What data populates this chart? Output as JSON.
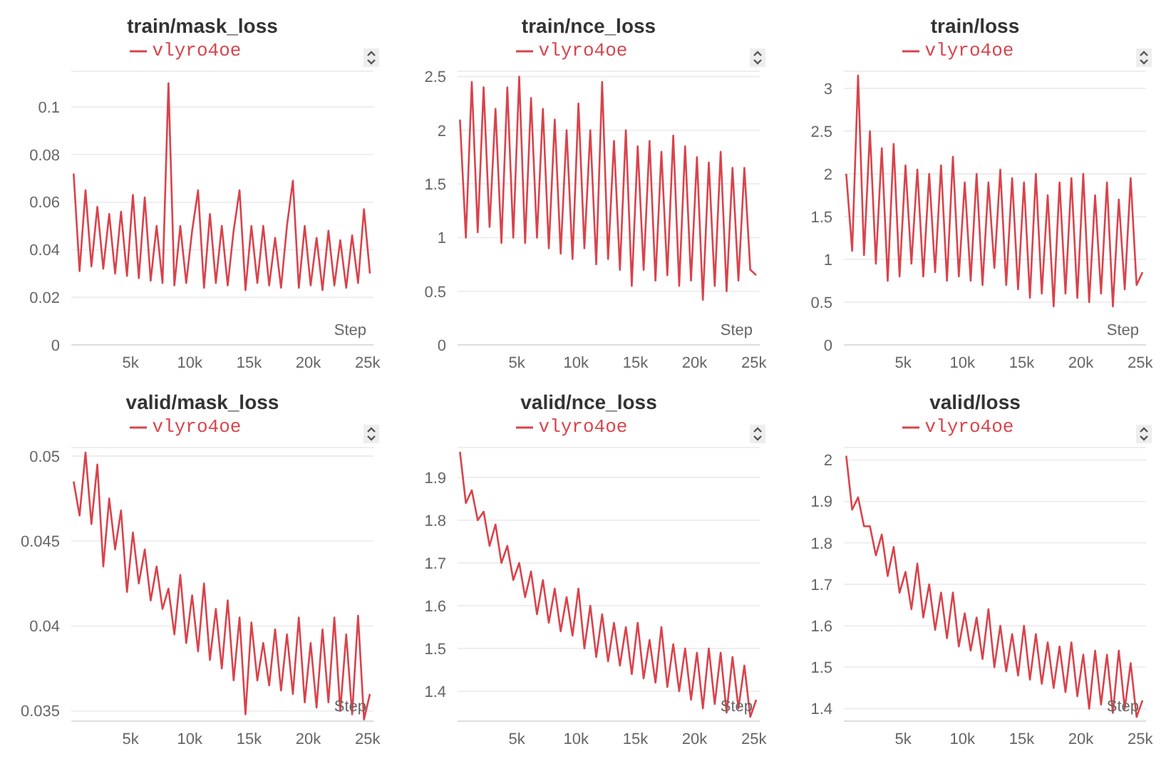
{
  "chart_data": [
    {
      "type": "line",
      "title": "train/mask_loss",
      "xlabel": "Step",
      "grid": "y",
      "legend": "top",
      "xlim": [
        0,
        25500
      ],
      "ylim": [
        0,
        0.115
      ],
      "yticks": [
        0,
        0.02,
        0.04,
        0.06,
        0.08,
        0.1
      ],
      "xticks": [
        {
          "value": 5000,
          "label": "5k"
        },
        {
          "value": 10000,
          "label": "10k"
        },
        {
          "value": 15000,
          "label": "15k"
        },
        {
          "value": 20000,
          "label": "20k"
        },
        {
          "value": 25000,
          "label": "25k"
        }
      ],
      "x": [
        200,
        700,
        1200,
        1700,
        2200,
        2700,
        3200,
        3700,
        4200,
        4700,
        5200,
        5700,
        6200,
        6700,
        7200,
        7700,
        8200,
        8700,
        9200,
        9700,
        10200,
        10700,
        11200,
        11700,
        12200,
        12700,
        13200,
        13700,
        14200,
        14700,
        15200,
        15700,
        16200,
        16700,
        17200,
        17700,
        18200,
        18700,
        19200,
        19700,
        20200,
        20700,
        21200,
        21700,
        22200,
        22700,
        23200,
        23700,
        24200,
        24700,
        25200
      ],
      "series": [
        {
          "name": "vlyro4oe",
          "color": "#d9434b",
          "values": [
            0.072,
            0.031,
            0.065,
            0.033,
            0.058,
            0.032,
            0.055,
            0.03,
            0.056,
            0.029,
            0.063,
            0.028,
            0.062,
            0.027,
            0.05,
            0.026,
            0.11,
            0.025,
            0.05,
            0.026,
            0.048,
            0.065,
            0.024,
            0.055,
            0.026,
            0.05,
            0.025,
            0.048,
            0.065,
            0.023,
            0.05,
            0.026,
            0.05,
            0.025,
            0.045,
            0.024,
            0.05,
            0.069,
            0.024,
            0.05,
            0.025,
            0.045,
            0.023,
            0.048,
            0.025,
            0.044,
            0.024,
            0.046,
            0.026,
            0.057,
            0.03
          ]
        }
      ]
    },
    {
      "type": "line",
      "title": "train/nce_loss",
      "xlabel": "Step",
      "grid": "y",
      "legend": "top",
      "xlim": [
        0,
        25500
      ],
      "ylim": [
        0,
        2.55
      ],
      "yticks": [
        0,
        0.5,
        1,
        1.5,
        2,
        2.5
      ],
      "xticks": [
        {
          "value": 5000,
          "label": "5k"
        },
        {
          "value": 10000,
          "label": "10k"
        },
        {
          "value": 15000,
          "label": "15k"
        },
        {
          "value": 20000,
          "label": "20k"
        },
        {
          "value": 25000,
          "label": "25k"
        }
      ],
      "x": [
        200,
        700,
        1200,
        1700,
        2200,
        2700,
        3200,
        3700,
        4200,
        4700,
        5200,
        5700,
        6200,
        6700,
        7200,
        7700,
        8200,
        8700,
        9200,
        9700,
        10200,
        10700,
        11200,
        11700,
        12200,
        12700,
        13200,
        13700,
        14200,
        14700,
        15200,
        15700,
        16200,
        16700,
        17200,
        17700,
        18200,
        18700,
        19200,
        19700,
        20200,
        20700,
        21200,
        21700,
        22200,
        22700,
        23200,
        23700,
        24200,
        24700,
        25200
      ],
      "series": [
        {
          "name": "vlyro4oe",
          "color": "#d9434b",
          "values": [
            2.1,
            1.0,
            2.45,
            1.05,
            2.4,
            1.1,
            2.2,
            0.95,
            2.4,
            1.0,
            2.5,
            0.95,
            2.3,
            1.0,
            2.2,
            0.9,
            2.1,
            0.85,
            2.0,
            0.8,
            2.25,
            0.9,
            2.0,
            0.75,
            2.45,
            0.8,
            1.9,
            0.7,
            2.0,
            0.55,
            1.85,
            0.7,
            1.9,
            0.6,
            1.8,
            0.65,
            1.95,
            0.55,
            1.85,
            0.6,
            1.75,
            0.42,
            1.7,
            0.55,
            1.8,
            0.5,
            1.65,
            0.6,
            1.65,
            0.7,
            0.65
          ]
        }
      ]
    },
    {
      "type": "line",
      "title": "train/loss",
      "xlabel": "Step",
      "grid": "y",
      "legend": "top",
      "xlim": [
        0,
        25500
      ],
      "ylim": [
        0,
        3.2
      ],
      "yticks": [
        0,
        0.5,
        1,
        1.5,
        2,
        2.5,
        3
      ],
      "xticks": [
        {
          "value": 5000,
          "label": "5k"
        },
        {
          "value": 10000,
          "label": "10k"
        },
        {
          "value": 15000,
          "label": "15k"
        },
        {
          "value": 20000,
          "label": "20k"
        },
        {
          "value": 25000,
          "label": "25k"
        }
      ],
      "x": [
        200,
        700,
        1200,
        1700,
        2200,
        2700,
        3200,
        3700,
        4200,
        4700,
        5200,
        5700,
        6200,
        6700,
        7200,
        7700,
        8200,
        8700,
        9200,
        9700,
        10200,
        10700,
        11200,
        11700,
        12200,
        12700,
        13200,
        13700,
        14200,
        14700,
        15200,
        15700,
        16200,
        16700,
        17200,
        17700,
        18200,
        18700,
        19200,
        19700,
        20200,
        20700,
        21200,
        21700,
        22200,
        22700,
        23200,
        23700,
        24200,
        24700,
        25200
      ],
      "series": [
        {
          "name": "vlyro4oe",
          "color": "#d9434b",
          "values": [
            2.0,
            1.1,
            3.15,
            1.05,
            2.5,
            0.95,
            2.3,
            0.75,
            2.35,
            0.8,
            2.1,
            0.95,
            2.05,
            0.8,
            2.0,
            0.85,
            2.1,
            0.75,
            2.2,
            0.8,
            1.9,
            0.75,
            2.0,
            0.7,
            1.9,
            0.9,
            2.05,
            0.7,
            1.95,
            0.65,
            1.9,
            0.55,
            2.0,
            0.6,
            1.75,
            0.45,
            1.9,
            0.6,
            1.95,
            0.55,
            2.0,
            0.5,
            1.75,
            0.6,
            1.9,
            0.45,
            1.7,
            0.65,
            1.95,
            0.7,
            0.85
          ]
        }
      ]
    },
    {
      "type": "line",
      "title": "valid/mask_loss",
      "xlabel": "Step",
      "grid": "y",
      "legend": "top",
      "xlim": [
        0,
        25500
      ],
      "ylim": [
        0.0344,
        0.0505
      ],
      "yticks": [
        0.035,
        0.04,
        0.045,
        0.05
      ],
      "xticks": [
        {
          "value": 5000,
          "label": "5k"
        },
        {
          "value": 10000,
          "label": "10k"
        },
        {
          "value": 15000,
          "label": "15k"
        },
        {
          "value": 20000,
          "label": "20k"
        },
        {
          "value": 25000,
          "label": "25k"
        }
      ],
      "x": [
        200,
        700,
        1200,
        1700,
        2200,
        2700,
        3200,
        3700,
        4200,
        4700,
        5200,
        5700,
        6200,
        6700,
        7200,
        7700,
        8200,
        8700,
        9200,
        9700,
        10200,
        10700,
        11200,
        11700,
        12200,
        12700,
        13200,
        13700,
        14200,
        14700,
        15200,
        15700,
        16200,
        16700,
        17200,
        17700,
        18200,
        18700,
        19200,
        19700,
        20200,
        20700,
        21200,
        21700,
        22200,
        22700,
        23200,
        23700,
        24200,
        24700,
        25200
      ],
      "series": [
        {
          "name": "vlyro4oe",
          "color": "#d9434b",
          "values": [
            0.0485,
            0.0465,
            0.0502,
            0.046,
            0.0495,
            0.0435,
            0.0475,
            0.0445,
            0.0468,
            0.042,
            0.0455,
            0.0425,
            0.0445,
            0.0415,
            0.0435,
            0.041,
            0.0422,
            0.0395,
            0.043,
            0.039,
            0.0418,
            0.0385,
            0.0425,
            0.038,
            0.041,
            0.0375,
            0.0415,
            0.0368,
            0.0405,
            0.0348,
            0.0402,
            0.0368,
            0.039,
            0.0365,
            0.0398,
            0.0362,
            0.0395,
            0.036,
            0.0405,
            0.0355,
            0.039,
            0.0352,
            0.0398,
            0.0355,
            0.0405,
            0.035,
            0.0395,
            0.0348,
            0.0406,
            0.0345,
            0.036
          ]
        }
      ]
    },
    {
      "type": "line",
      "title": "valid/nce_loss",
      "xlabel": "Step",
      "grid": "y",
      "legend": "top",
      "xlim": [
        0,
        25500
      ],
      "ylim": [
        1.33,
        1.97
      ],
      "yticks": [
        1.4,
        1.5,
        1.6,
        1.7,
        1.8,
        1.9
      ],
      "xticks": [
        {
          "value": 5000,
          "label": "5k"
        },
        {
          "value": 10000,
          "label": "10k"
        },
        {
          "value": 15000,
          "label": "15k"
        },
        {
          "value": 20000,
          "label": "20k"
        },
        {
          "value": 25000,
          "label": "25k"
        }
      ],
      "x": [
        200,
        700,
        1200,
        1700,
        2200,
        2700,
        3200,
        3700,
        4200,
        4700,
        5200,
        5700,
        6200,
        6700,
        7200,
        7700,
        8200,
        8700,
        9200,
        9700,
        10200,
        10700,
        11200,
        11700,
        12200,
        12700,
        13200,
        13700,
        14200,
        14700,
        15200,
        15700,
        16200,
        16700,
        17200,
        17700,
        18200,
        18700,
        19200,
        19700,
        20200,
        20700,
        21200,
        21700,
        22200,
        22700,
        23200,
        23700,
        24200,
        24700,
        25200
      ],
      "series": [
        {
          "name": "vlyro4oe",
          "color": "#d9434b",
          "values": [
            1.96,
            1.84,
            1.87,
            1.8,
            1.82,
            1.74,
            1.79,
            1.7,
            1.74,
            1.66,
            1.7,
            1.62,
            1.68,
            1.58,
            1.66,
            1.56,
            1.64,
            1.54,
            1.62,
            1.53,
            1.64,
            1.5,
            1.6,
            1.48,
            1.58,
            1.47,
            1.56,
            1.46,
            1.55,
            1.44,
            1.56,
            1.43,
            1.52,
            1.42,
            1.55,
            1.41,
            1.51,
            1.4,
            1.5,
            1.38,
            1.49,
            1.36,
            1.5,
            1.37,
            1.49,
            1.35,
            1.48,
            1.36,
            1.46,
            1.34,
            1.38
          ]
        }
      ]
    },
    {
      "type": "line",
      "title": "valid/loss",
      "xlabel": "Step",
      "grid": "y",
      "legend": "top",
      "xlim": [
        0,
        25500
      ],
      "ylim": [
        1.37,
        2.03
      ],
      "yticks": [
        1.4,
        1.5,
        1.6,
        1.7,
        1.8,
        1.9,
        2
      ],
      "xticks": [
        {
          "value": 5000,
          "label": "5k"
        },
        {
          "value": 10000,
          "label": "10k"
        },
        {
          "value": 15000,
          "label": "15k"
        },
        {
          "value": 20000,
          "label": "20k"
        },
        {
          "value": 25000,
          "label": "25k"
        }
      ],
      "x": [
        200,
        700,
        1200,
        1700,
        2200,
        2700,
        3200,
        3700,
        4200,
        4700,
        5200,
        5700,
        6200,
        6700,
        7200,
        7700,
        8200,
        8700,
        9200,
        9700,
        10200,
        10700,
        11200,
        11700,
        12200,
        12700,
        13200,
        13700,
        14200,
        14700,
        15200,
        15700,
        16200,
        16700,
        17200,
        17700,
        18200,
        18700,
        19200,
        19700,
        20200,
        20700,
        21200,
        21700,
        22200,
        22700,
        23200,
        23700,
        24200,
        24700,
        25200
      ],
      "series": [
        {
          "name": "vlyro4oe",
          "color": "#d9434b",
          "values": [
            2.01,
            1.88,
            1.91,
            1.84,
            1.84,
            1.77,
            1.82,
            1.72,
            1.79,
            1.68,
            1.73,
            1.64,
            1.75,
            1.62,
            1.7,
            1.59,
            1.68,
            1.57,
            1.68,
            1.55,
            1.63,
            1.54,
            1.62,
            1.52,
            1.64,
            1.5,
            1.6,
            1.49,
            1.58,
            1.48,
            1.6,
            1.47,
            1.58,
            1.46,
            1.56,
            1.45,
            1.55,
            1.44,
            1.56,
            1.43,
            1.53,
            1.4,
            1.54,
            1.41,
            1.53,
            1.39,
            1.54,
            1.4,
            1.51,
            1.38,
            1.42
          ]
        }
      ]
    }
  ]
}
